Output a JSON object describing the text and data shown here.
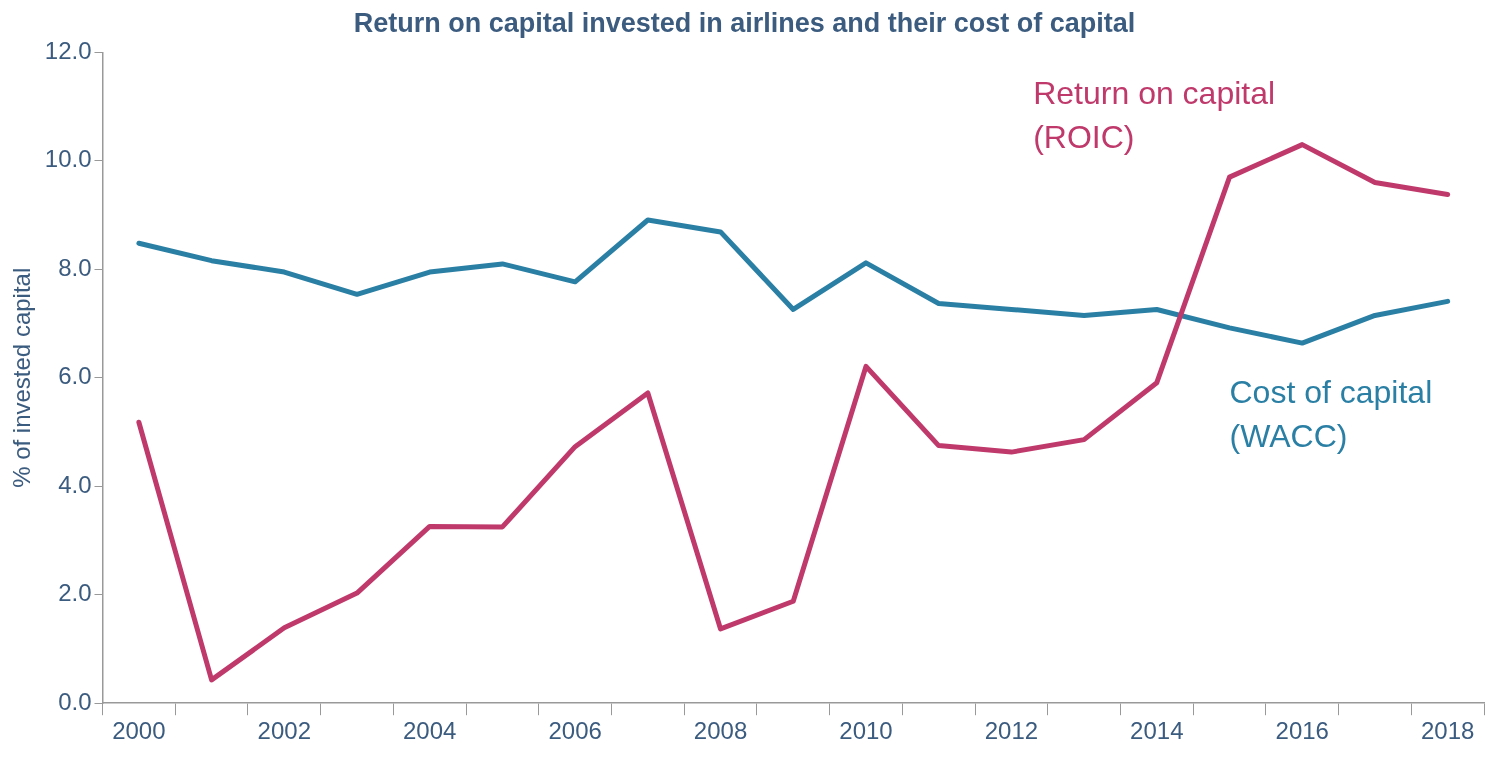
{
  "chart_data": {
    "type": "line",
    "title": "Return on capital invested in airlines and their cost of capital",
    "ylabel": "% of invested capital",
    "categories": [
      "2000",
      null,
      "2002",
      null,
      "2004",
      null,
      "2006",
      null,
      "2008",
      null,
      "2010",
      null,
      "2012",
      null,
      "2014",
      null,
      "2016",
      null,
      "2018"
    ],
    "series": [
      {
        "name": "Return on capital (ROIC)",
        "color": "#c0396b",
        "values": [
          5.18,
          0.43,
          1.39,
          2.03,
          3.26,
          3.25,
          4.73,
          5.72,
          1.37,
          1.88,
          6.21,
          4.75,
          4.63,
          4.86,
          5.91,
          9.7,
          10.3,
          9.6,
          9.38
        ]
      },
      {
        "name": "Cost of capital (WACC)",
        "color": "#2a7fa5",
        "values": [
          8.48,
          8.16,
          7.95,
          7.54,
          7.95,
          8.1,
          7.77,
          8.91,
          8.69,
          7.26,
          8.12,
          7.37,
          7.26,
          7.15,
          7.26,
          6.92,
          6.64,
          7.15,
          7.41
        ]
      }
    ],
    "ylim": [
      0,
      12
    ],
    "yticks": [
      {
        "value": 0,
        "label": "0.0"
      },
      {
        "value": 2,
        "label": "2.0"
      },
      {
        "value": 4,
        "label": "4.0"
      },
      {
        "value": 6,
        "label": "6.0"
      },
      {
        "value": 8,
        "label": "8.0"
      },
      {
        "value": 10,
        "label": "10.0"
      },
      {
        "value": 12,
        "label": "12.0"
      }
    ],
    "grid": false,
    "legend": false,
    "marker": "none",
    "line_style": "solid"
  }
}
